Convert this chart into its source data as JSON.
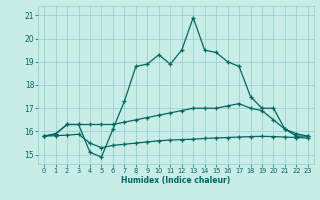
{
  "xlabel": "Humidex (Indice chaleur)",
  "xlim": [
    -0.5,
    23.5
  ],
  "ylim": [
    14.6,
    21.4
  ],
  "yticks": [
    15,
    16,
    17,
    18,
    19,
    20,
    21
  ],
  "xticks": [
    0,
    1,
    2,
    3,
    4,
    5,
    6,
    7,
    8,
    9,
    10,
    11,
    12,
    13,
    14,
    15,
    16,
    17,
    18,
    19,
    20,
    21,
    22,
    23
  ],
  "background_color": "#c8ece6",
  "grid_color": "#8fcfca",
  "line_color": "#006666",
  "curve1": [
    15.8,
    15.9,
    16.3,
    16.3,
    15.1,
    14.9,
    16.1,
    17.3,
    18.8,
    18.9,
    19.3,
    18.9,
    19.5,
    20.9,
    19.5,
    19.4,
    19.0,
    18.8,
    17.5,
    17.0,
    17.0,
    16.1,
    15.8,
    15.8
  ],
  "curve2": [
    15.8,
    15.9,
    16.3,
    16.3,
    16.3,
    16.3,
    16.3,
    16.4,
    16.5,
    16.6,
    16.7,
    16.8,
    16.9,
    17.0,
    17.0,
    17.0,
    17.1,
    17.2,
    17.0,
    16.9,
    16.5,
    16.1,
    15.9,
    15.8
  ],
  "curve3": [
    15.8,
    15.82,
    15.84,
    15.88,
    15.5,
    15.3,
    15.4,
    15.45,
    15.5,
    15.55,
    15.6,
    15.63,
    15.65,
    15.67,
    15.7,
    15.72,
    15.74,
    15.76,
    15.78,
    15.79,
    15.78,
    15.76,
    15.74,
    15.72
  ]
}
